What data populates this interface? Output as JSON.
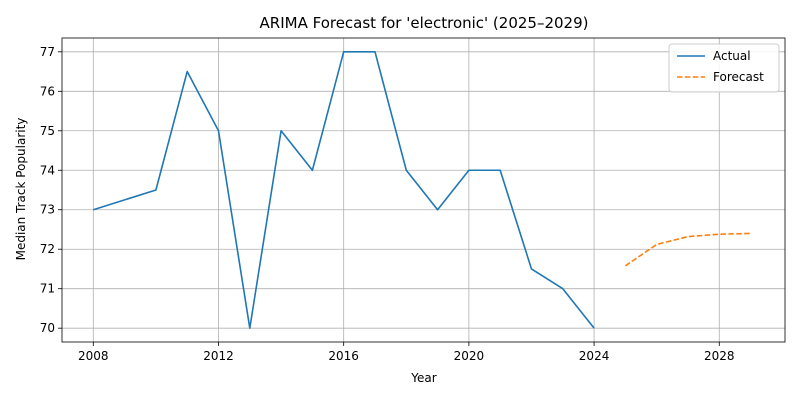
{
  "chart_data": {
    "type": "line",
    "title": "ARIMA Forecast for 'electronic' (2025–2029)",
    "xlabel": "Year",
    "ylabel": "Median Track Popularity",
    "xlim": [
      2007,
      2030.1
    ],
    "ylim": [
      69.65,
      77.35
    ],
    "xticks": [
      2008,
      2012,
      2016,
      2020,
      2024,
      2028
    ],
    "yticks": [
      70,
      71,
      72,
      73,
      74,
      75,
      76,
      77
    ],
    "grid": true,
    "legend_position": "top-right",
    "series": [
      {
        "name": "Actual",
        "color": "#1f77b4",
        "style": "solid",
        "x": [
          2008,
          2010,
          2011,
          2012,
          2013,
          2014,
          2015,
          2016,
          2017,
          2018,
          2019,
          2020,
          2021,
          2022,
          2023,
          2024
        ],
        "y": [
          73.0,
          73.5,
          76.5,
          75.0,
          70.0,
          75.0,
          74.0,
          77.0,
          77.0,
          74.0,
          73.0,
          74.0,
          74.0,
          71.5,
          71.0,
          70.0
        ]
      },
      {
        "name": "Forecast",
        "color": "#ff7f0e",
        "style": "dashed",
        "x": [
          2025,
          2026,
          2027,
          2028,
          2029
        ],
        "y": [
          71.58,
          72.12,
          72.32,
          72.38,
          72.4
        ]
      }
    ]
  }
}
